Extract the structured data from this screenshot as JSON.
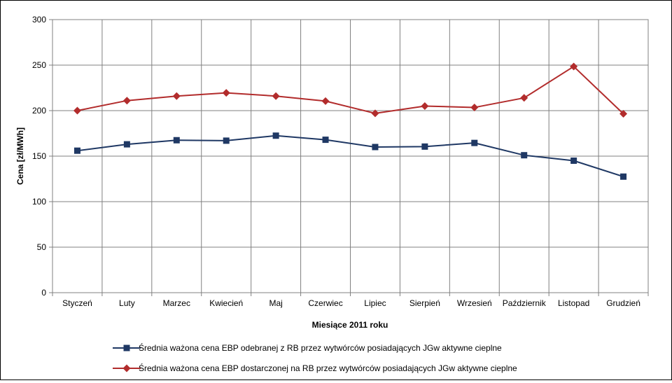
{
  "chart_data": {
    "type": "line",
    "xlabel": "Miesiące 2011  roku",
    "ylabel": "Cena [zł/MWh]",
    "ylim": [
      0,
      300
    ],
    "yticks": [
      0,
      50,
      100,
      150,
      200,
      250,
      300
    ],
    "ytick_labels": [
      "0",
      "50",
      "100",
      "150",
      "200",
      "250",
      "300"
    ],
    "grid": true,
    "legend_position": "bottom",
    "categories": [
      "Styczeń",
      "Luty",
      "Marzec",
      "Kwiecień",
      "Maj",
      "Czerwiec",
      "Lipiec",
      "Sierpień",
      "Wrzesień",
      "Październik",
      "Listopad",
      "Grudzień"
    ],
    "series": [
      {
        "name": "Średnia ważona cena EBP odebranej z RB przez wytwórców posiadających JGw aktywne cieplne",
        "color": "#1f3864",
        "marker": "square",
        "values": [
          156,
          163,
          167.5,
          167,
          172.5,
          168,
          160,
          160.5,
          164.5,
          151,
          145,
          127.5
        ]
      },
      {
        "name": "Średnia ważona cena EBP dostarczonej na RB przez wytwórców posiadających JGw aktywne cieplne",
        "color": "#b22c2c",
        "marker": "diamond",
        "values": [
          200,
          211,
          216,
          219.5,
          216,
          210.5,
          197,
          205,
          203.5,
          214,
          248.5,
          196.5
        ]
      }
    ]
  }
}
